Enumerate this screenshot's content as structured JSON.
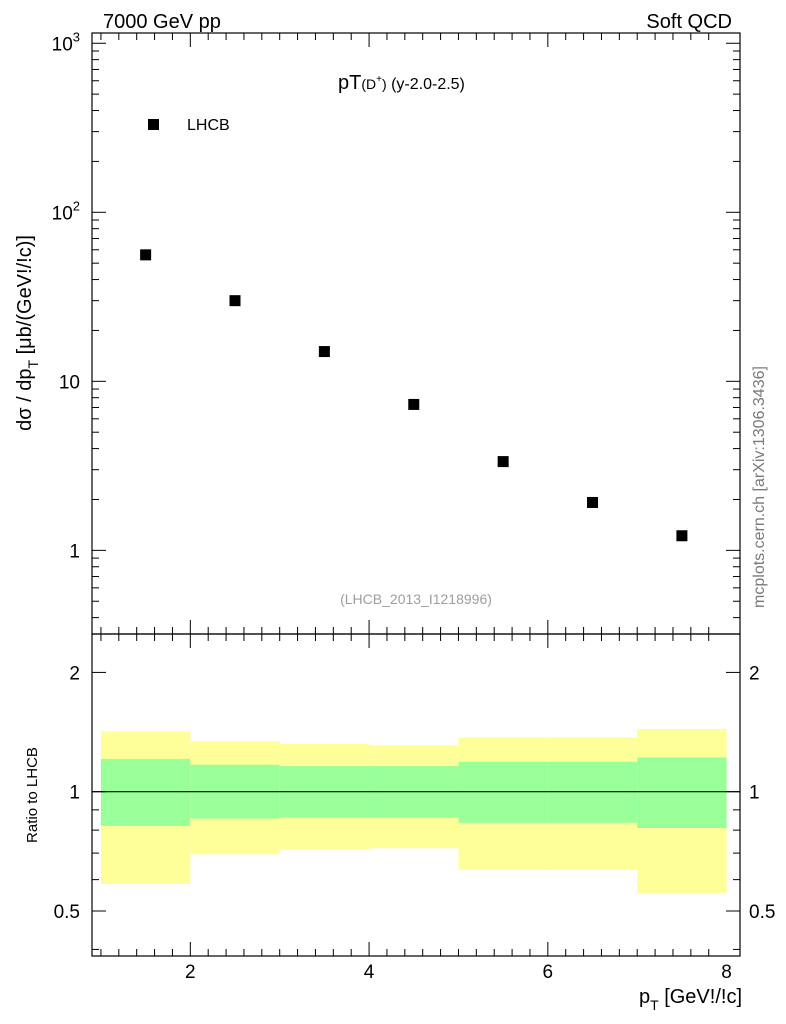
{
  "header": {
    "left": "7000 GeV pp",
    "right": "Soft QCD"
  },
  "side_label": "mcplots.cern.ch [arXiv:1306.3436]",
  "chart_data": [
    {
      "type": "scatter",
      "title_main": "pT",
      "title_particle": "(D",
      "title_sup": "+",
      "title_close": ")",
      "title_range": " (y-2.0-2.5)",
      "ylabel_main": "dσ / dp",
      "ylabel_sub": "T",
      "ylabel_units": " [μb/(GeV!/!c)]",
      "yscale": "log",
      "ylim": [
        0.32,
        1150
      ],
      "xlim": [
        0.9,
        8.15
      ],
      "y_ticks": [
        {
          "v": 1,
          "label": "1"
        },
        {
          "v": 10,
          "label": "10"
        },
        {
          "v": 100,
          "label": "10",
          "exp": "2"
        },
        {
          "v": 1000,
          "label": "10",
          "exp": "3"
        }
      ],
      "legend": {
        "label": "LHCB",
        "position": "top-left"
      },
      "annotation": "(LHCB_2013_I1218996)",
      "series": [
        {
          "name": "LHCB",
          "x": [
            1.5,
            2.5,
            3.5,
            4.5,
            5.5,
            6.5,
            7.5
          ],
          "y": [
            56,
            30,
            15,
            7.3,
            3.35,
            1.92,
            1.22
          ]
        }
      ]
    },
    {
      "type": "area",
      "ylabel": "Ratio to LHCB",
      "yscale": "log",
      "ylim": [
        0.385,
        2.5
      ],
      "xlim": [
        0.9,
        8.15
      ],
      "y_ticks": [
        {
          "v": 0.5,
          "label": "0.5"
        },
        {
          "v": 1,
          "label": "1"
        },
        {
          "v": 2,
          "label": "2"
        }
      ],
      "x_ticks": [
        {
          "v": 2,
          "label": "2"
        },
        {
          "v": 4,
          "label": "4"
        },
        {
          "v": 6,
          "label": "6"
        },
        {
          "v": 8,
          "label": "8"
        }
      ],
      "xlabel_main": "p",
      "xlabel_sub": "T",
      "xlabel_units": " [GeV!/!c]",
      "reference_line": 1,
      "bins": [
        {
          "x0": 1,
          "x1": 2,
          "stat_lo": 0.82,
          "stat_hi": 1.21,
          "tot_lo": 0.585,
          "tot_hi": 1.42
        },
        {
          "x0": 2,
          "x1": 3,
          "stat_lo": 0.855,
          "stat_hi": 1.17,
          "tot_lo": 0.695,
          "tot_hi": 1.34
        },
        {
          "x0": 3,
          "x1": 4,
          "stat_lo": 0.86,
          "stat_hi": 1.16,
          "tot_lo": 0.715,
          "tot_hi": 1.32
        },
        {
          "x0": 4,
          "x1": 5,
          "stat_lo": 0.86,
          "stat_hi": 1.16,
          "tot_lo": 0.72,
          "tot_hi": 1.31
        },
        {
          "x0": 5,
          "x1": 6,
          "stat_lo": 0.835,
          "stat_hi": 1.19,
          "tot_lo": 0.635,
          "tot_hi": 1.37
        },
        {
          "x0": 6,
          "x1": 7,
          "stat_lo": 0.835,
          "stat_hi": 1.19,
          "tot_lo": 0.635,
          "tot_hi": 1.37
        },
        {
          "x0": 7,
          "x1": 8,
          "stat_lo": 0.81,
          "stat_hi": 1.22,
          "tot_lo": 0.555,
          "tot_hi": 1.44
        }
      ],
      "colors": {
        "stat": "#99ff99",
        "total": "#ffff99",
        "line": "#000000"
      }
    }
  ]
}
